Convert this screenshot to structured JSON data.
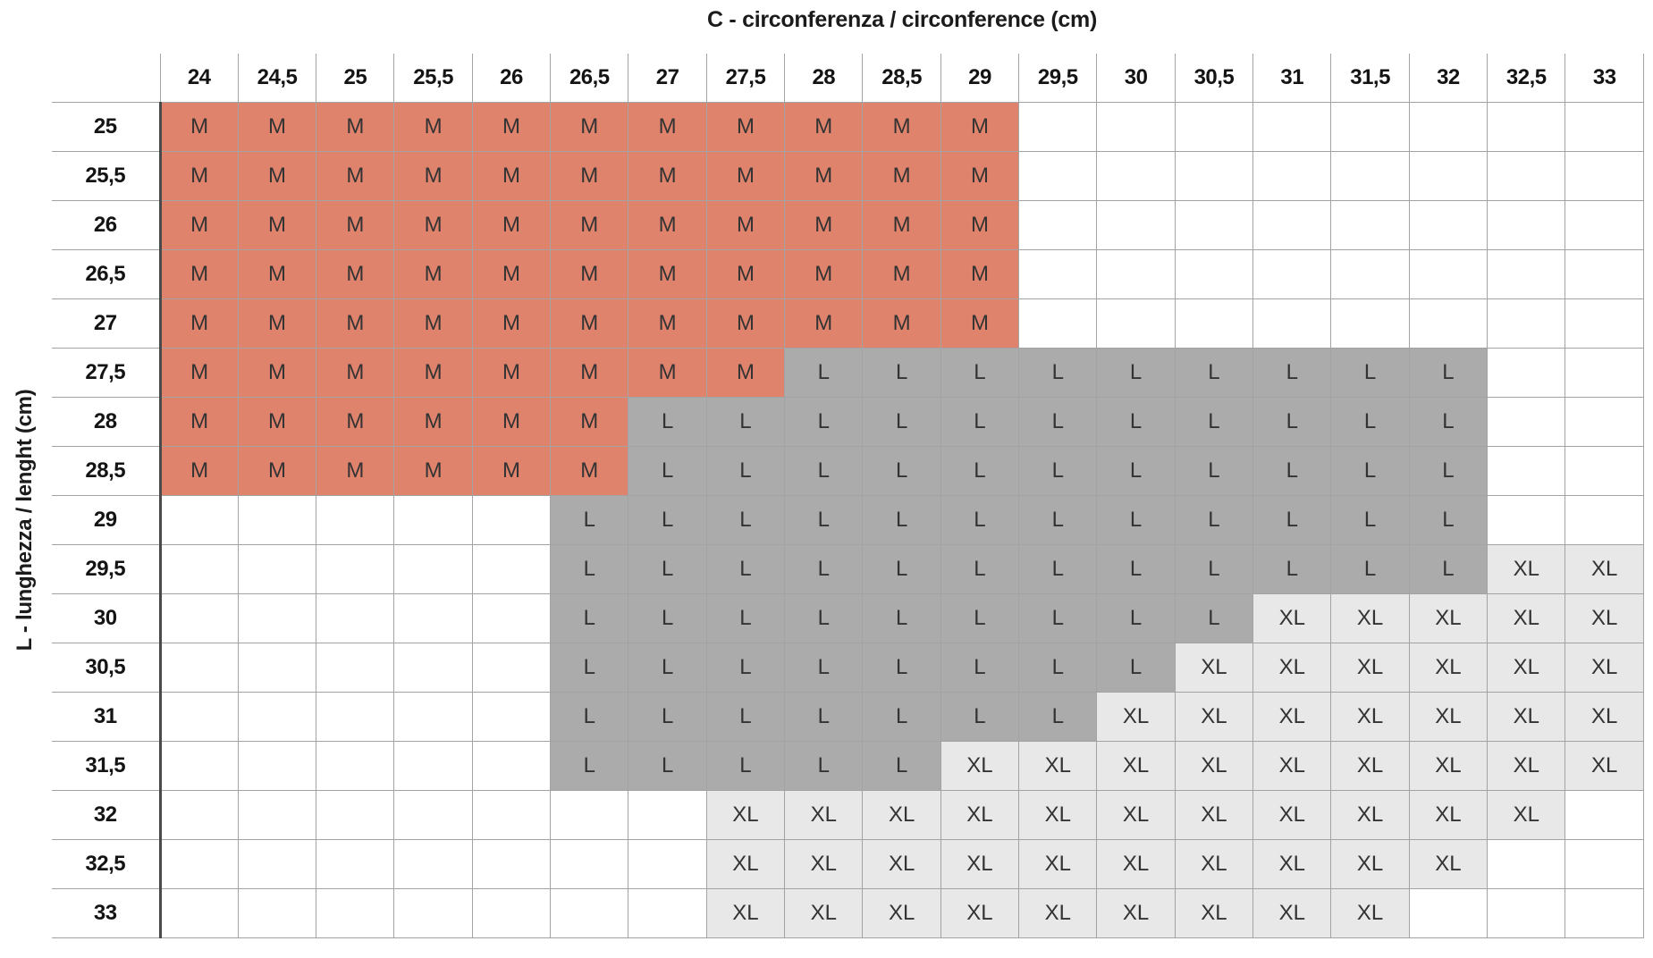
{
  "chart_data": {
    "type": "table",
    "title": "C - circonferenza / circonference (cm)",
    "ylabel": "L - lunghezza / lenght (cm)",
    "columns": [
      "24",
      "24,5",
      "25",
      "25,5",
      "26",
      "26,5",
      "27",
      "27,5",
      "28",
      "28,5",
      "29",
      "29,5",
      "30",
      "30,5",
      "31",
      "31,5",
      "32",
      "32,5",
      "33"
    ],
    "rows": [
      {
        "label": "25",
        "cells": [
          "M",
          "M",
          "M",
          "M",
          "M",
          "M",
          "M",
          "M",
          "M",
          "M",
          "M",
          "",
          "",
          "",
          "",
          "",
          "",
          "",
          ""
        ]
      },
      {
        "label": "25,5",
        "cells": [
          "M",
          "M",
          "M",
          "M",
          "M",
          "M",
          "M",
          "M",
          "M",
          "M",
          "M",
          "",
          "",
          "",
          "",
          "",
          "",
          "",
          ""
        ]
      },
      {
        "label": "26",
        "cells": [
          "M",
          "M",
          "M",
          "M",
          "M",
          "M",
          "M",
          "M",
          "M",
          "M",
          "M",
          "",
          "",
          "",
          "",
          "",
          "",
          "",
          ""
        ]
      },
      {
        "label": "26,5",
        "cells": [
          "M",
          "M",
          "M",
          "M",
          "M",
          "M",
          "M",
          "M",
          "M",
          "M",
          "M",
          "",
          "",
          "",
          "",
          "",
          "",
          "",
          ""
        ]
      },
      {
        "label": "27",
        "cells": [
          "M",
          "M",
          "M",
          "M",
          "M",
          "M",
          "M",
          "M",
          "M",
          "M",
          "M",
          "",
          "",
          "",
          "",
          "",
          "",
          "",
          ""
        ]
      },
      {
        "label": "27,5",
        "cells": [
          "M",
          "M",
          "M",
          "M",
          "M",
          "M",
          "M",
          "M",
          "L",
          "L",
          "L",
          "L",
          "L",
          "L",
          "L",
          "L",
          "L",
          "",
          ""
        ]
      },
      {
        "label": "28",
        "cells": [
          "M",
          "M",
          "M",
          "M",
          "M",
          "M",
          "L",
          "L",
          "L",
          "L",
          "L",
          "L",
          "L",
          "L",
          "L",
          "L",
          "L",
          "",
          ""
        ]
      },
      {
        "label": "28,5",
        "cells": [
          "M",
          "M",
          "M",
          "M",
          "M",
          "M",
          "L",
          "L",
          "L",
          "L",
          "L",
          "L",
          "L",
          "L",
          "L",
          "L",
          "L",
          "",
          ""
        ]
      },
      {
        "label": "29",
        "cells": [
          "",
          "",
          "",
          "",
          "",
          "L",
          "L",
          "L",
          "L",
          "L",
          "L",
          "L",
          "L",
          "L",
          "L",
          "L",
          "L",
          "",
          ""
        ]
      },
      {
        "label": "29,5",
        "cells": [
          "",
          "",
          "",
          "",
          "",
          "L",
          "L",
          "L",
          "L",
          "L",
          "L",
          "L",
          "L",
          "L",
          "L",
          "L",
          "L",
          "XL",
          "XL"
        ]
      },
      {
        "label": "30",
        "cells": [
          "",
          "",
          "",
          "",
          "",
          "L",
          "L",
          "L",
          "L",
          "L",
          "L",
          "L",
          "L",
          "L",
          "XL",
          "XL",
          "XL",
          "XL",
          "XL"
        ]
      },
      {
        "label": "30,5",
        "cells": [
          "",
          "",
          "",
          "",
          "",
          "L",
          "L",
          "L",
          "L",
          "L",
          "L",
          "L",
          "L",
          "XL",
          "XL",
          "XL",
          "XL",
          "XL",
          "XL"
        ]
      },
      {
        "label": "31",
        "cells": [
          "",
          "",
          "",
          "",
          "",
          "L",
          "L",
          "L",
          "L",
          "L",
          "L",
          "L",
          "XL",
          "XL",
          "XL",
          "XL",
          "XL",
          "XL",
          "XL"
        ]
      },
      {
        "label": "31,5",
        "cells": [
          "",
          "",
          "",
          "",
          "",
          "L",
          "L",
          "L",
          "L",
          "L",
          "XL",
          "XL",
          "XL",
          "XL",
          "XL",
          "XL",
          "XL",
          "XL",
          "XL"
        ]
      },
      {
        "label": "32",
        "cells": [
          "",
          "",
          "",
          "",
          "",
          "",
          "",
          "XL",
          "XL",
          "XL",
          "XL",
          "XL",
          "XL",
          "XL",
          "XL",
          "XL",
          "XL",
          "XL",
          ""
        ]
      },
      {
        "label": "32,5",
        "cells": [
          "",
          "",
          "",
          "",
          "",
          "",
          "",
          "XL",
          "XL",
          "XL",
          "XL",
          "XL",
          "XL",
          "XL",
          "XL",
          "XL",
          "XL",
          "",
          ""
        ]
      },
      {
        "label": "33",
        "cells": [
          "",
          "",
          "",
          "",
          "",
          "",
          "",
          "XL",
          "XL",
          "XL",
          "XL",
          "XL",
          "XL",
          "XL",
          "XL",
          "XL",
          "",
          "",
          ""
        ]
      }
    ],
    "cell_colors": {
      "M": "#df836d",
      "L": "#ababab",
      "XL": "#e8e8e8",
      "empty": "#ffffff"
    },
    "grid_color": "#a3a3a3",
    "divider_color": "#4a4a4a",
    "legend_position": "none",
    "grid": "on"
  }
}
